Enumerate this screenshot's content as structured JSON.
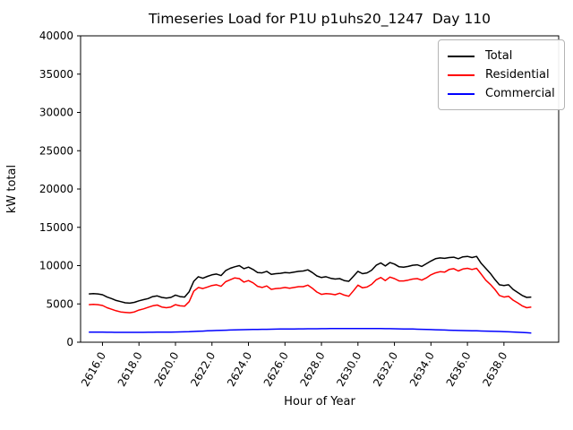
{
  "figure": {
    "title": "Timeseries Load for P1U p1uhs20_1247  Day 110"
  },
  "legend": {
    "items": [
      {
        "label": "Total",
        "color": "#000000"
      },
      {
        "label": "Residential",
        "color": "#ff0000"
      },
      {
        "label": "Commercial",
        "color": "#0000ff"
      }
    ]
  },
  "chart_data": {
    "type": "line",
    "title": "Timeseries Load for P1U p1uhs20_1247  Day 110",
    "xlabel": "Hour of Year",
    "ylabel": "kW total",
    "xlim": [
      2614.8,
      2641.0
    ],
    "ylim": [
      0,
      40000
    ],
    "grid": false,
    "legend_position": "upper right",
    "x_tick_labels": [
      "2616.0",
      "2618.0",
      "2620.0",
      "2622.0",
      "2624.0",
      "2626.0",
      "2628.0",
      "2630.0",
      "2632.0",
      "2634.0",
      "2636.0",
      "2638.0"
    ],
    "x_tick_values": [
      2616,
      2618,
      2620,
      2622,
      2624,
      2626,
      2628,
      2630,
      2632,
      2634,
      2636,
      2638
    ],
    "x_tick_rotation_deg": 60,
    "y_tick_values": [
      0,
      5000,
      10000,
      15000,
      20000,
      25000,
      30000,
      35000,
      40000
    ],
    "y_tick_labels": [
      "0",
      "5000",
      "10000",
      "15000",
      "20000",
      "25000",
      "30000",
      "35000",
      "40000"
    ],
    "x_start": 2615.25,
    "x_step": 0.25,
    "series": [
      {
        "name": "Total",
        "color": "#000000",
        "values": [
          6300,
          6350,
          6300,
          6200,
          5900,
          5700,
          5450,
          5300,
          5150,
          5100,
          5200,
          5400,
          5550,
          5700,
          5950,
          6050,
          5850,
          5750,
          5850,
          6150,
          5950,
          5900,
          6600,
          7950,
          8550,
          8350,
          8600,
          8800,
          8900,
          8700,
          9350,
          9650,
          9850,
          10000,
          9600,
          9800,
          9500,
          9100,
          9050,
          9250,
          8850,
          8950,
          9000,
          9100,
          9050,
          9150,
          9250,
          9300,
          9450,
          9100,
          8650,
          8450,
          8550,
          8350,
          8250,
          8300,
          8050,
          7950,
          8600,
          9250,
          8950,
          9050,
          9400,
          10050,
          10350,
          9950,
          10400,
          10200,
          9850,
          9800,
          9900,
          10050,
          10100,
          9900,
          10250,
          10600,
          10900,
          11000,
          10950,
          11050,
          11100,
          10900,
          11150,
          11200,
          11050,
          11200,
          10300,
          9650,
          9000,
          8200,
          7500,
          7400,
          7500,
          6900,
          6500,
          6100,
          5850,
          5900
        ]
      },
      {
        "name": "Residential",
        "color": "#ff0000",
        "values": [
          4900,
          4950,
          4900,
          4800,
          4500,
          4300,
          4100,
          3950,
          3900,
          3850,
          3950,
          4200,
          4350,
          4550,
          4750,
          4850,
          4600,
          4500,
          4600,
          4900,
          4750,
          4700,
          5300,
          6650,
          7150,
          7000,
          7200,
          7400,
          7500,
          7300,
          7900,
          8150,
          8400,
          8300,
          7850,
          8050,
          7750,
          7300,
          7150,
          7350,
          6900,
          7000,
          7050,
          7150,
          7050,
          7150,
          7250,
          7250,
          7450,
          7050,
          6550,
          6250,
          6350,
          6300,
          6200,
          6400,
          6150,
          6000,
          6700,
          7450,
          7100,
          7200,
          7550,
          8150,
          8450,
          8050,
          8500,
          8300,
          8000,
          8000,
          8100,
          8250,
          8300,
          8100,
          8400,
          8800,
          9050,
          9200,
          9150,
          9500,
          9600,
          9300,
          9550,
          9650,
          9500,
          9650,
          8900,
          8100,
          7550,
          6900,
          6100,
          5900,
          6000,
          5500,
          5150,
          4750,
          4500,
          4600
        ]
      },
      {
        "name": "Commercial",
        "color": "#0000ff",
        "values": [
          1320,
          1315,
          1310,
          1305,
          1300,
          1295,
          1290,
          1290,
          1285,
          1285,
          1285,
          1290,
          1290,
          1295,
          1300,
          1305,
          1310,
          1315,
          1320,
          1330,
          1340,
          1355,
          1370,
          1400,
          1430,
          1455,
          1480,
          1505,
          1530,
          1550,
          1570,
          1590,
          1605,
          1620,
          1635,
          1650,
          1660,
          1670,
          1680,
          1690,
          1700,
          1710,
          1715,
          1720,
          1730,
          1735,
          1740,
          1745,
          1750,
          1755,
          1760,
          1765,
          1770,
          1775,
          1780,
          1785,
          1790,
          1790,
          1795,
          1795,
          1790,
          1790,
          1785,
          1780,
          1775,
          1770,
          1765,
          1755,
          1745,
          1735,
          1725,
          1715,
          1700,
          1685,
          1670,
          1650,
          1630,
          1610,
          1590,
          1570,
          1550,
          1535,
          1520,
          1505,
          1490,
          1480,
          1465,
          1450,
          1435,
          1420,
          1400,
          1380,
          1355,
          1330,
          1300,
          1270,
          1240,
          1210
        ]
      }
    ]
  }
}
